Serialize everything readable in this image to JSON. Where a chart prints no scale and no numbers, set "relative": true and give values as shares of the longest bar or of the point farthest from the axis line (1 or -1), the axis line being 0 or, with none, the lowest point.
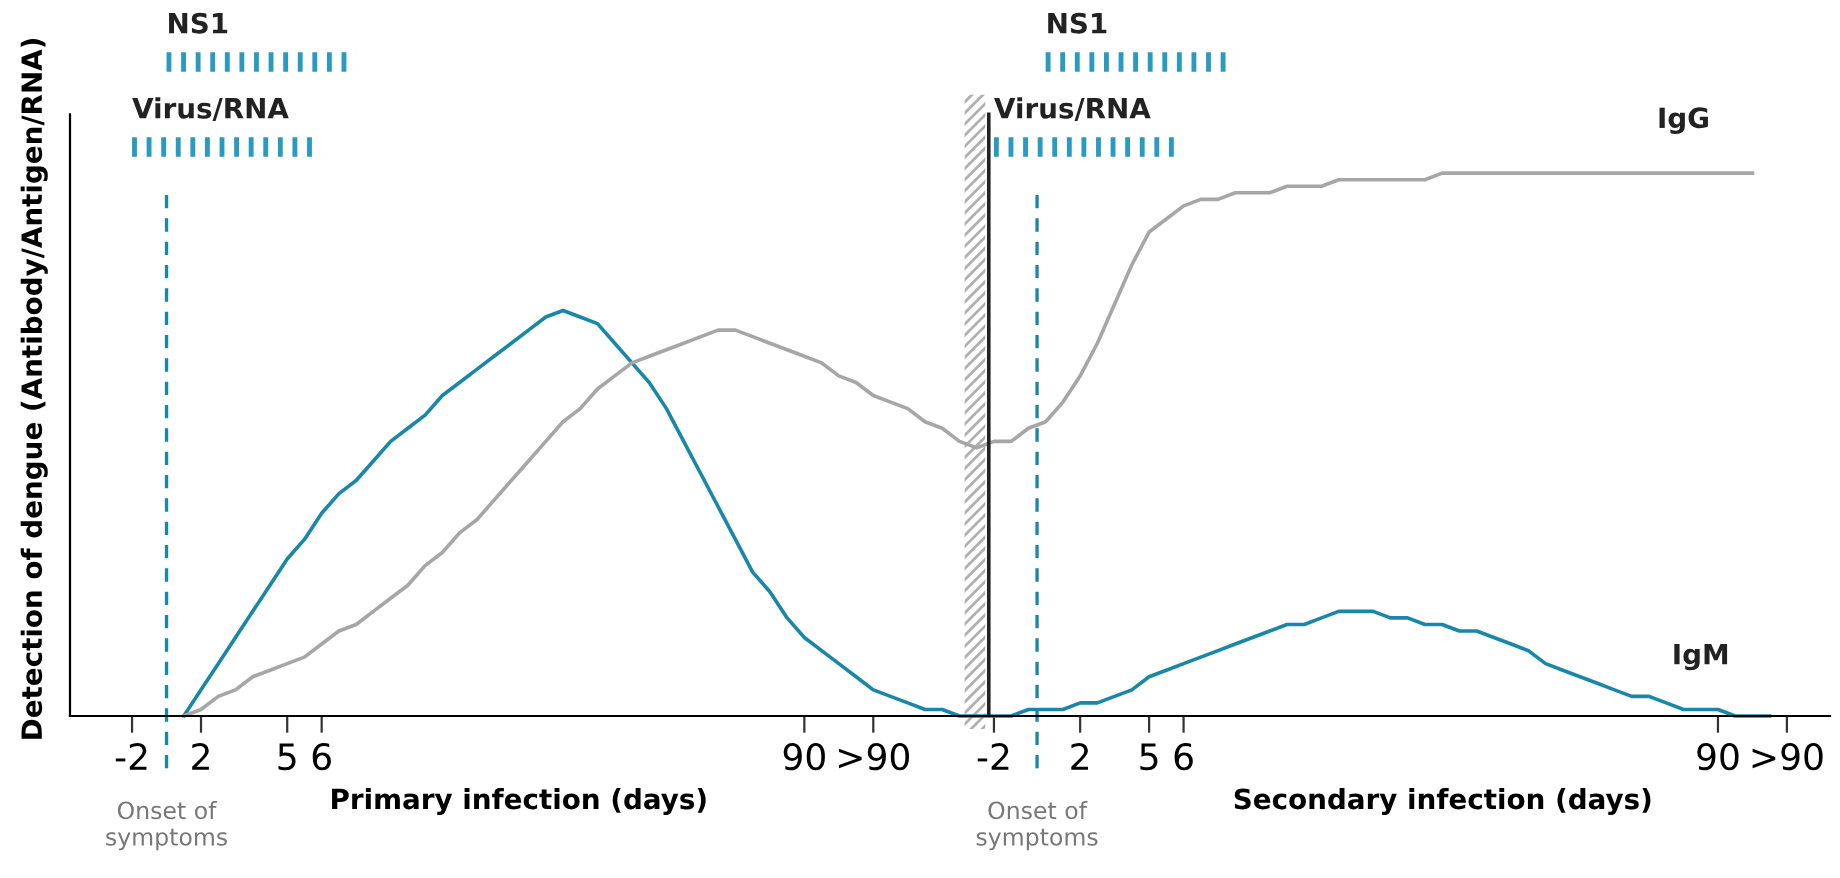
{
  "chart_data": {
    "type": "line",
    "relative": true,
    "ylabel": "Detection of dengue (Antibody/Antigen/RNA)",
    "xlabel": "Primary infection (days)",
    "annotations": [
      "Secondary infection (days)",
      "Onset of\nsymptoms",
      "Onset of\nsymptoms"
    ],
    "categories": [
      null,
      null,
      "-2",
      null,
      null,
      null,
      "2",
      null,
      null,
      null,
      null,
      "5",
      null,
      "6",
      null,
      null,
      null,
      null,
      null,
      null,
      null,
      null,
      null,
      null,
      null,
      null,
      null,
      null,
      null,
      null,
      null,
      null,
      null,
      null,
      null,
      null,
      null,
      null,
      null,
      null,
      null,
      "90",
      null,
      null,
      null,
      ">90",
      null,
      null,
      null,
      null,
      null,
      null,
      "-2",
      null,
      null,
      null,
      null,
      "2",
      null,
      null,
      null,
      "5",
      null,
      "6",
      null,
      null,
      null,
      null,
      null,
      null,
      null,
      null,
      null,
      null,
      null,
      null,
      null,
      null,
      null,
      null,
      null,
      null,
      null,
      null,
      null,
      null,
      null,
      null,
      null,
      null,
      null,
      null,
      null,
      null,
      "90",
      null,
      null,
      null,
      ">90",
      null,
      null
    ],
    "grid": false,
    "legend": false,
    "marker": "none",
    "series": [
      {
        "name": "IgM",
        "color": "#1a87a8",
        "line_style": "solid",
        "values": [
          null,
          null,
          null,
          null,
          null,
          0.0,
          0.04,
          0.08,
          0.12,
          0.16,
          0.2,
          0.24,
          0.27,
          0.31,
          0.34,
          0.36,
          0.39,
          0.42,
          0.44,
          0.46,
          0.49,
          0.51,
          0.53,
          0.55,
          0.57,
          0.59,
          0.61,
          0.62,
          0.61,
          0.6,
          0.57,
          0.54,
          0.51,
          0.47,
          0.42,
          0.37,
          0.32,
          0.27,
          0.22,
          0.19,
          0.15,
          0.12,
          0.1,
          0.08,
          0.06,
          0.04,
          0.03,
          0.02,
          0.01,
          0.01,
          0.0,
          0.0,
          0.0,
          0.0,
          0.01,
          0.01,
          0.01,
          0.02,
          0.02,
          0.03,
          0.04,
          0.06,
          0.07,
          0.08,
          0.09,
          0.1,
          0.11,
          0.12,
          0.13,
          0.14,
          0.14,
          0.15,
          0.16,
          0.16,
          0.16,
          0.15,
          0.15,
          0.14,
          0.14,
          0.13,
          0.13,
          0.12,
          0.11,
          0.1,
          0.08,
          0.07,
          0.06,
          0.05,
          0.04,
          0.03,
          0.03,
          0.02,
          0.01,
          0.01,
          0.01,
          0.0,
          0.0,
          0.0,
          null,
          null,
          null
        ]
      },
      {
        "name": "IgG",
        "color": "#a6a6a6",
        "line_style": "solid",
        "values": [
          null,
          null,
          null,
          null,
          null,
          0.0,
          0.01,
          0.03,
          0.04,
          0.06,
          0.07,
          0.08,
          0.09,
          0.11,
          0.13,
          0.14,
          0.16,
          0.18,
          0.2,
          0.23,
          0.25,
          0.28,
          0.3,
          0.33,
          0.36,
          0.39,
          0.42,
          0.45,
          0.47,
          0.5,
          0.52,
          0.54,
          0.55,
          0.56,
          0.57,
          0.58,
          0.59,
          0.59,
          0.58,
          0.57,
          0.56,
          0.55,
          0.54,
          0.52,
          0.51,
          0.49,
          0.48,
          0.47,
          0.45,
          0.44,
          0.42,
          0.41,
          0.42,
          0.42,
          0.44,
          0.45,
          0.48,
          0.52,
          0.57,
          0.63,
          0.69,
          0.74,
          0.76,
          0.78,
          0.79,
          0.79,
          0.8,
          0.8,
          0.8,
          0.81,
          0.81,
          0.81,
          0.82,
          0.82,
          0.82,
          0.82,
          0.82,
          0.82,
          0.83,
          0.83,
          0.83,
          0.83,
          0.83,
          0.83,
          0.83,
          0.83,
          0.83,
          0.83,
          0.83,
          0.83,
          0.83,
          0.83,
          0.83,
          0.83,
          0.83,
          0.83,
          0.83,
          null,
          null,
          null,
          null
        ]
      },
      {
        "name": "NS1",
        "color": "#2a9bc0",
        "line_style": "dotted",
        "values": [
          null,
          null,
          null,
          null,
          1,
          1,
          1,
          1,
          1,
          1,
          1,
          1,
          1,
          1,
          1,
          1,
          null,
          null,
          null,
          null,
          null,
          null,
          null,
          null,
          null,
          null,
          null,
          null,
          null,
          null,
          null,
          null,
          null,
          null,
          null,
          null,
          null,
          null,
          null,
          null,
          null,
          null,
          null,
          null,
          null,
          null,
          null,
          null,
          null,
          null,
          null,
          null,
          null,
          null,
          null,
          1,
          1,
          1,
          1,
          1,
          1,
          1,
          1,
          1,
          1,
          1,
          1,
          null,
          null,
          null,
          null,
          null,
          null,
          null,
          null,
          null,
          null,
          null,
          null,
          null,
          null,
          null,
          null,
          null,
          null,
          null,
          null,
          null,
          null,
          null,
          null,
          null,
          null,
          null,
          null,
          null,
          null,
          null,
          null,
          null,
          null
        ]
      },
      {
        "name": "Virus/RNA",
        "color": "#2a9bc0",
        "line_style": "dotted",
        "values": [
          null,
          null,
          0.87,
          0.87,
          0.87,
          0.87,
          0.87,
          0.87,
          0.87,
          0.87,
          0.87,
          0.87,
          0.87,
          0.87,
          null,
          null,
          null,
          null,
          null,
          null,
          null,
          null,
          null,
          null,
          null,
          null,
          null,
          null,
          null,
          null,
          null,
          null,
          null,
          null,
          null,
          null,
          null,
          null,
          null,
          null,
          null,
          null,
          null,
          null,
          null,
          null,
          null,
          null,
          null,
          null,
          null,
          null,
          0.87,
          0.87,
          0.87,
          0.87,
          0.87,
          0.87,
          0.87,
          0.87,
          0.87,
          0.87,
          0.87,
          0.87,
          null,
          null,
          null,
          null,
          null,
          null,
          null,
          null,
          null,
          null,
          null,
          null,
          null,
          null,
          null,
          null,
          null,
          null,
          null,
          null,
          null,
          null,
          null,
          null,
          null,
          null,
          null,
          null,
          null,
          null,
          null,
          null,
          null,
          null,
          null,
          null,
          null
        ]
      }
    ]
  }
}
